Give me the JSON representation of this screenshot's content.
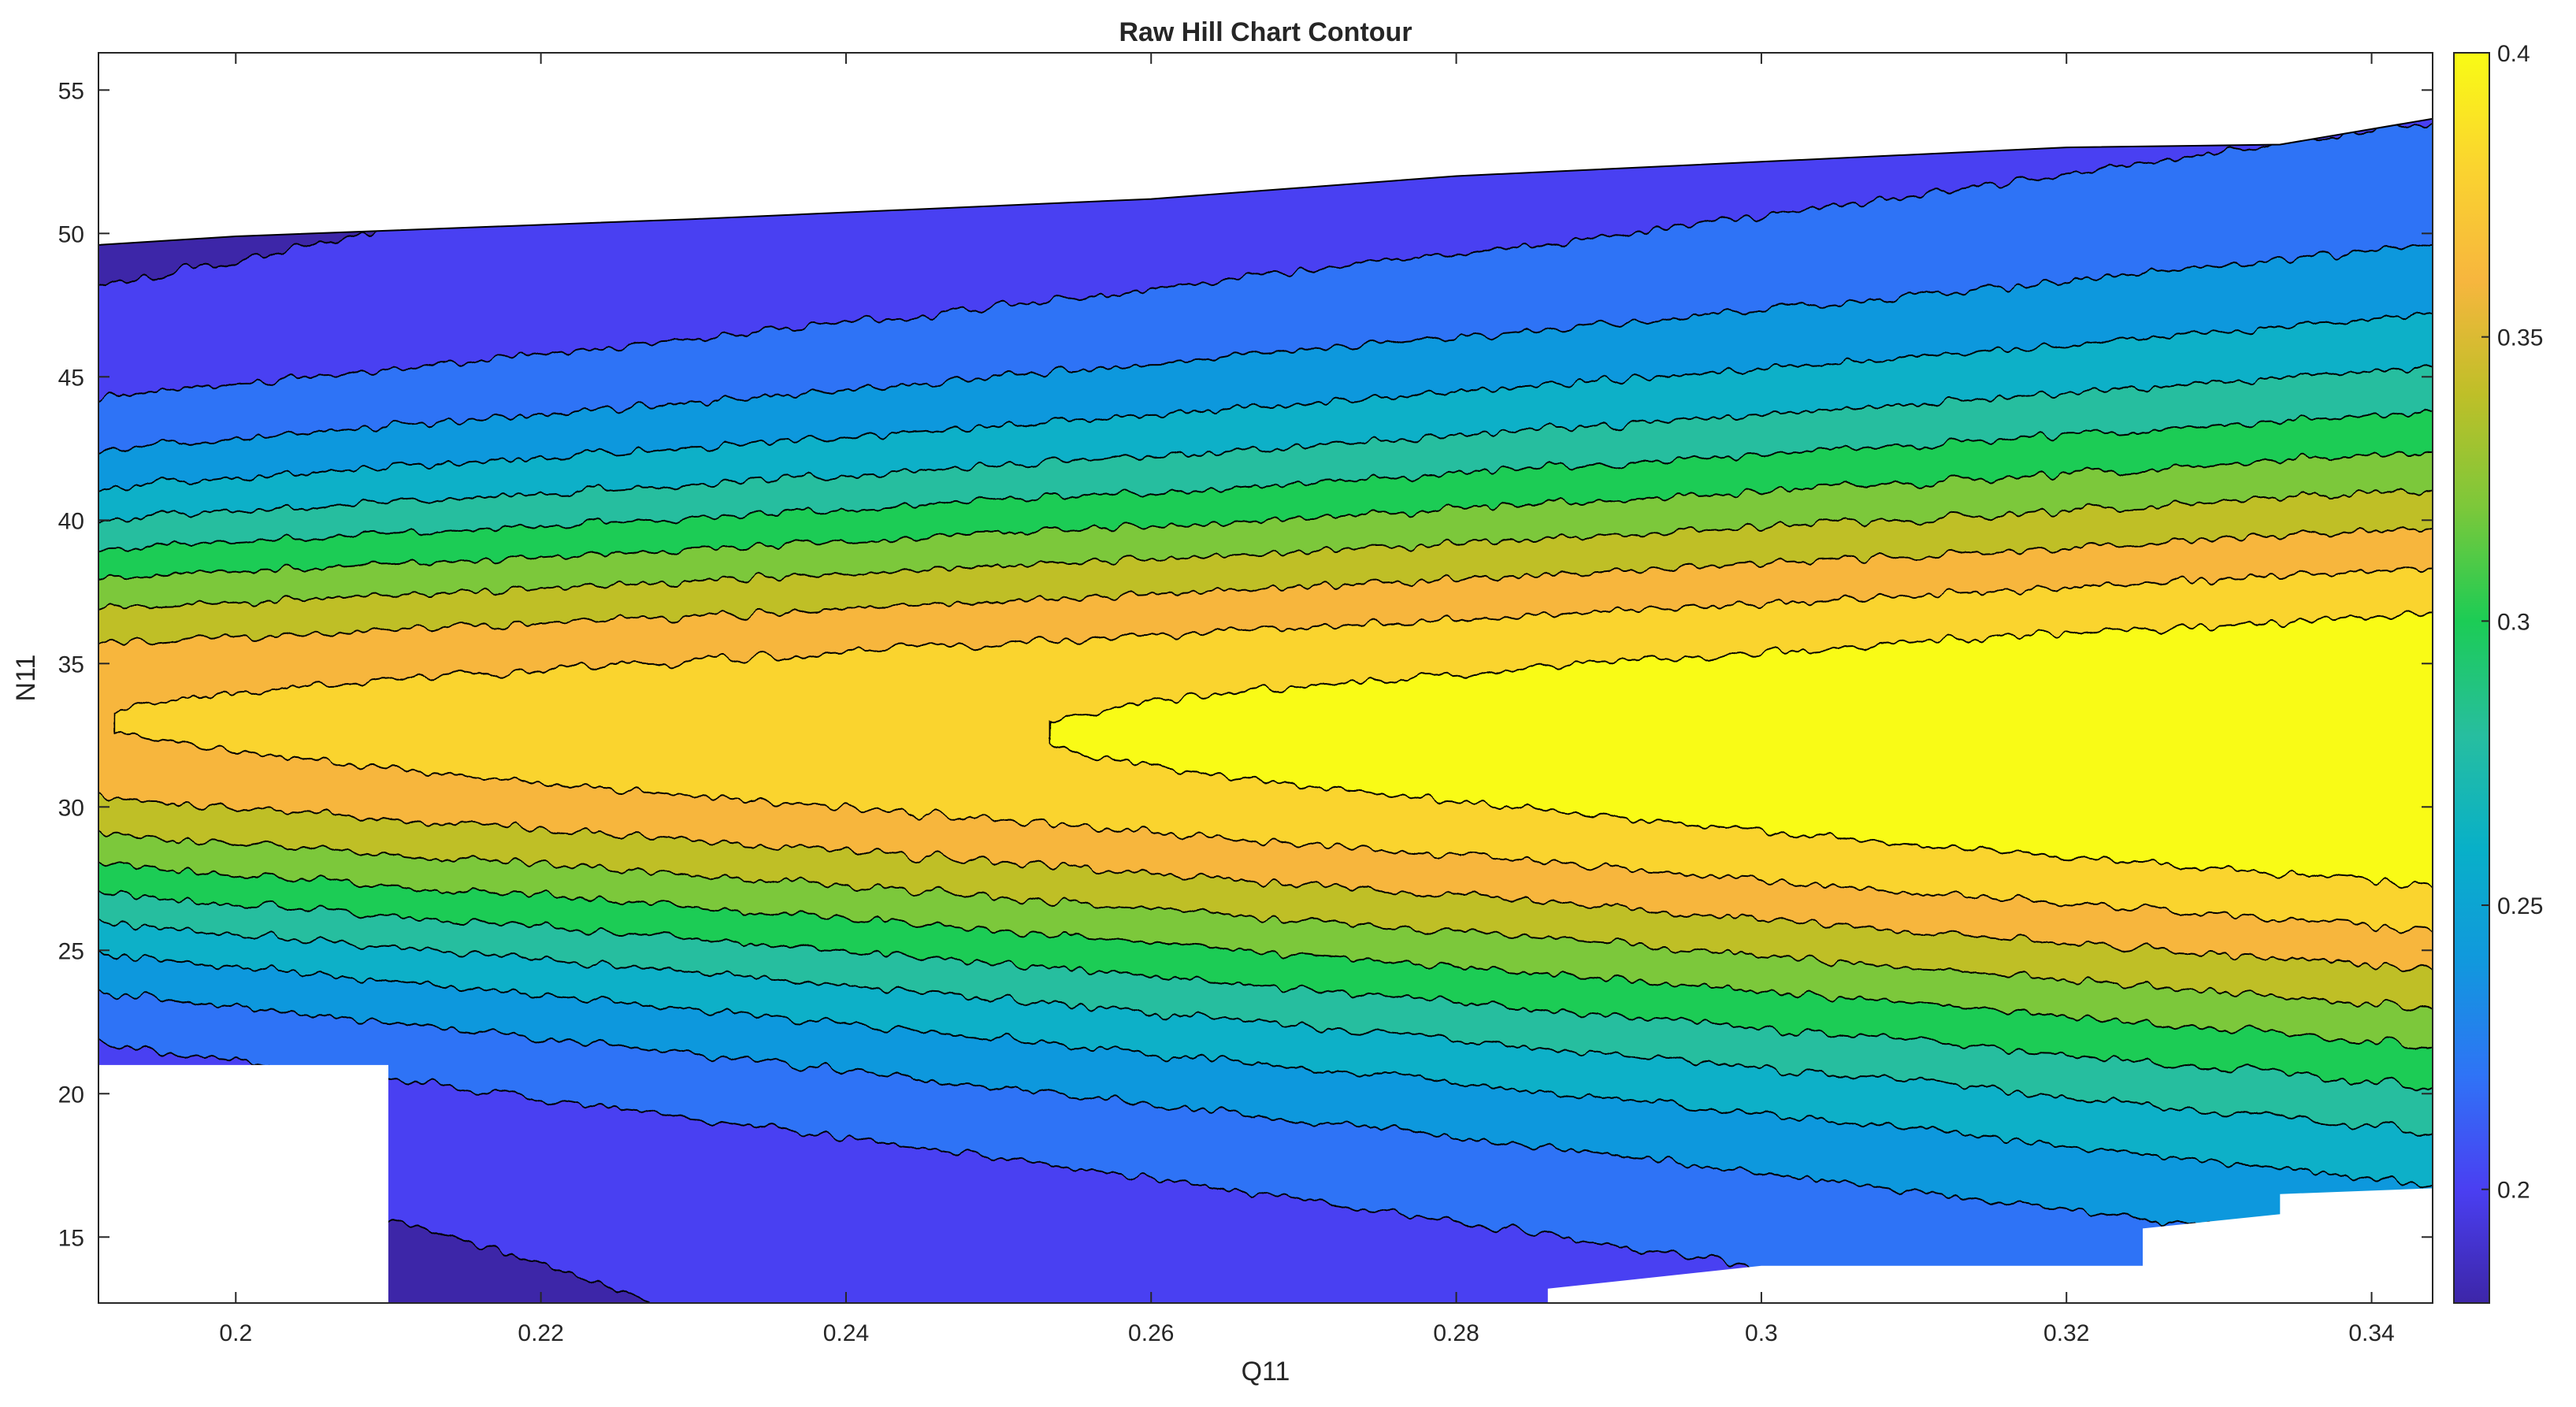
{
  "chart_data": {
    "type": "contour",
    "title": "Raw Hill Chart Contour",
    "xlabel": "Q11",
    "ylabel": "N11",
    "xlim": [
      0.191,
      0.344
    ],
    "ylim": [
      12.7,
      56.3
    ],
    "x_ticks": [
      0.2,
      0.22,
      0.24,
      0.26,
      0.28,
      0.3,
      0.32,
      0.34
    ],
    "x_tick_labels": [
      "0.2",
      "0.22",
      "0.24",
      "0.26",
      "0.28",
      "0.3",
      "0.32",
      "0.34"
    ],
    "y_ticks": [
      15,
      20,
      25,
      30,
      35,
      40,
      45,
      50,
      55
    ],
    "y_tick_labels": [
      "15",
      "20",
      "25",
      "30",
      "35",
      "40",
      "45",
      "50",
      "55"
    ],
    "colorbar": {
      "colormap": "parula",
      "clim": [
        0.18,
        0.4
      ],
      "ticks": [
        0.2,
        0.25,
        0.3,
        0.35,
        0.4
      ],
      "tick_labels": [
        "0.2",
        "0.25",
        "0.3",
        "0.35",
        "0.4"
      ],
      "stops": [
        "#3d26a8",
        "#4a3ff2",
        "#2f73f6",
        "#1198dd",
        "#08b0c8",
        "#27be9f",
        "#1ccc55",
        "#7cc83a",
        "#bfbf28",
        "#f7b63e",
        "#fad42f",
        "#f9fb15"
      ]
    },
    "contour_levels": [
      0.19,
      0.21,
      0.23,
      0.25,
      0.27,
      0.29,
      0.31,
      0.33,
      0.35,
      0.37,
      0.39
    ],
    "peak": {
      "q11": 0.343,
      "n11": 32.5,
      "value": 0.4
    },
    "domain_boundary": {
      "top_edge": [
        [
          0.191,
          49.6
        ],
        [
          0.2,
          49.9
        ],
        [
          0.23,
          50.5
        ],
        [
          0.26,
          51.2
        ],
        [
          0.28,
          52.0
        ],
        [
          0.3,
          52.5
        ],
        [
          0.32,
          53.0
        ],
        [
          0.334,
          53.1
        ],
        [
          0.344,
          54.0
        ]
      ],
      "bottom_edge": [
        [
          0.21,
          12.7
        ],
        [
          0.286,
          12.7
        ],
        [
          0.286,
          13.2
        ],
        [
          0.3,
          14.0
        ],
        [
          0.325,
          14.0
        ],
        [
          0.325,
          15.3
        ],
        [
          0.334,
          15.8
        ],
        [
          0.334,
          16.5
        ],
        [
          0.344,
          16.7
        ]
      ],
      "left_gap": {
        "q11_from": 0.191,
        "q11_to": 0.21,
        "n11_below": 21.0
      }
    },
    "grid": false,
    "colorbar_position": "right"
  }
}
